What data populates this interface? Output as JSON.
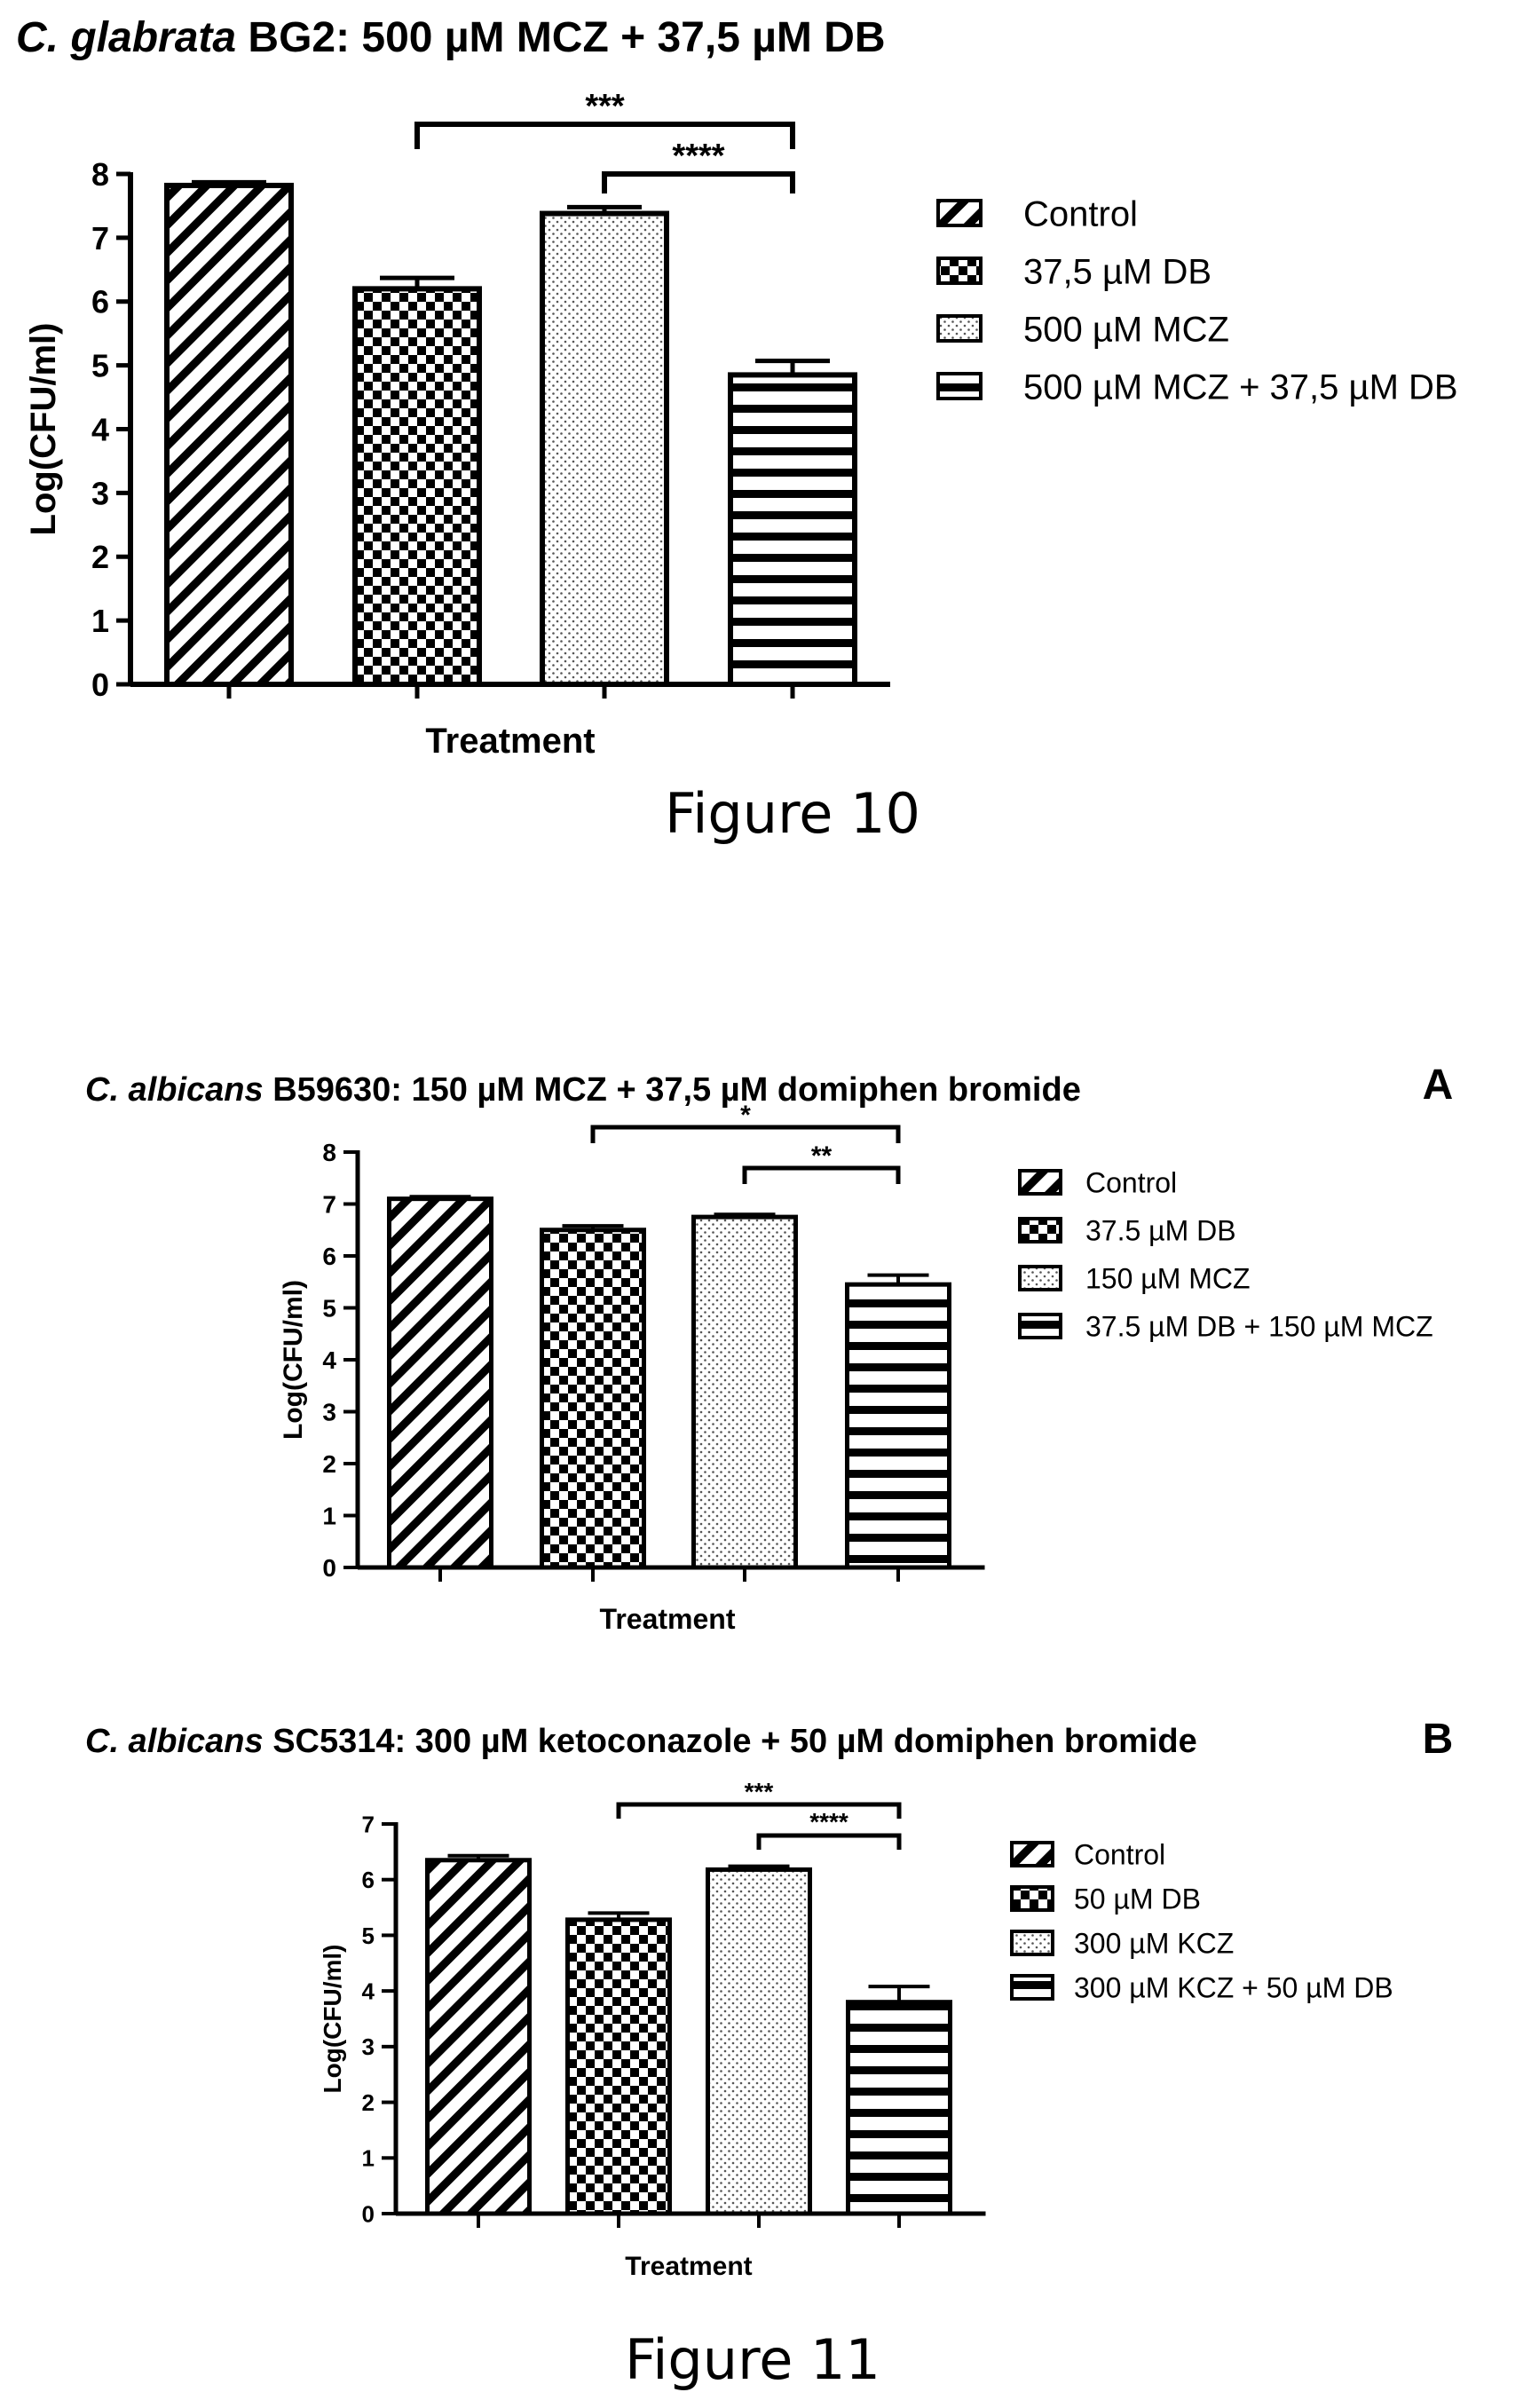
{
  "figure10_caption": "Figure 10",
  "figure11_caption": "Figure 11",
  "chart_data": [
    {
      "type": "bar",
      "title_italic": "C. glabrata",
      "title_rest": " BG2: 500 µM MCZ + 37,5 µM DB",
      "panel_label": "",
      "xlabel": "Treatment",
      "ylabel": "Log(CFU/ml)",
      "ylim": [
        0,
        8
      ],
      "yticks": [
        "0",
        "1",
        "2",
        "3",
        "4",
        "5",
        "6",
        "7",
        "8"
      ],
      "grid": false,
      "legend_position": "right",
      "categories": [
        "Control",
        "37,5 µM DB",
        "500 µM MCZ",
        "500 µM MCZ + 37,5 µM DB"
      ],
      "values": [
        7.82,
        6.2,
        7.38,
        4.85
      ],
      "errors": [
        0.05,
        0.17,
        0.1,
        0.22
      ],
      "patterns": [
        "diagonal",
        "checker",
        "dots",
        "horizontal"
      ],
      "significance": [
        {
          "from": 1,
          "to": 3,
          "label": "***"
        },
        {
          "from": 2,
          "to": 3,
          "label": "****"
        }
      ]
    },
    {
      "type": "bar",
      "title_italic": "C. albicans",
      "title_rest": " B59630: 150 µM MCZ + 37,5 µM domiphen bromide",
      "panel_label": "A",
      "xlabel": "Treatment",
      "ylabel": "Log(CFU/ml)",
      "ylim": [
        0,
        8
      ],
      "yticks": [
        "0",
        "1",
        "2",
        "3",
        "4",
        "5",
        "6",
        "7",
        "8"
      ],
      "grid": false,
      "legend_position": "right",
      "categories": [
        "Control",
        "37.5 µM DB",
        "150 µM MCZ",
        "37.5 µM DB + 150 µM MCZ"
      ],
      "values": [
        7.1,
        6.5,
        6.75,
        5.45
      ],
      "errors": [
        0.04,
        0.08,
        0.05,
        0.18
      ],
      "patterns": [
        "diagonal",
        "checker",
        "dots",
        "horizontal"
      ],
      "significance": [
        {
          "from": 1,
          "to": 3,
          "label": "*"
        },
        {
          "from": 2,
          "to": 3,
          "label": "**"
        }
      ]
    },
    {
      "type": "bar",
      "title_italic": "C. albicans",
      "title_rest": " SC5314: 300 µM ketoconazole + 50 µM domiphen bromide",
      "panel_label": "B",
      "xlabel": "Treatment",
      "ylabel": "Log(CFU/ml)",
      "ylim": [
        0,
        7
      ],
      "yticks": [
        "0",
        "1",
        "2",
        "3",
        "4",
        "5",
        "6",
        "7"
      ],
      "grid": false,
      "legend_position": "right",
      "categories": [
        "Control",
        "50 µM DB",
        "300 µM KCZ",
        "300 µM KCZ + 50 µM DB"
      ],
      "values": [
        6.35,
        5.28,
        6.18,
        3.8
      ],
      "errors": [
        0.08,
        0.12,
        0.06,
        0.28
      ],
      "patterns": [
        "diagonal",
        "checker",
        "dots",
        "horizontal"
      ],
      "significance": [
        {
          "from": 1,
          "to": 3,
          "label": "***"
        },
        {
          "from": 2,
          "to": 3,
          "label": "****"
        }
      ]
    }
  ]
}
